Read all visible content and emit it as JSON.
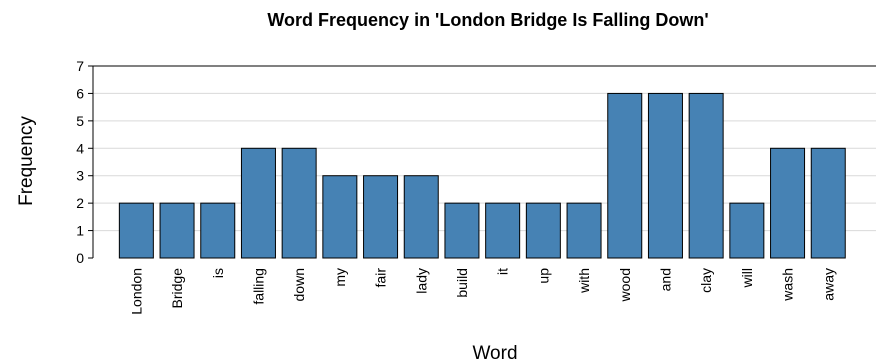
{
  "chart_data": {
    "type": "bar",
    "title": "Word Frequency in 'London Bridge Is Falling Down'",
    "xlabel": "Word",
    "ylabel": "Frequency",
    "categories": [
      "London",
      "Bridge",
      "is",
      "falling",
      "down",
      "my",
      "fair",
      "lady",
      "build",
      "it",
      "up",
      "with",
      "wood",
      "and",
      "clay",
      "will",
      "wash",
      "away"
    ],
    "values": [
      2,
      2,
      2,
      4,
      4,
      3,
      3,
      3,
      2,
      2,
      2,
      2,
      6,
      6,
      6,
      2,
      4,
      4
    ],
    "ylim": [
      0,
      7
    ],
    "yticks": [
      0,
      1,
      2,
      3,
      4,
      5,
      6,
      7
    ],
    "grid": true,
    "legend": "none",
    "bar_color": "#4682b4",
    "bar_edge_color": "#000000"
  }
}
